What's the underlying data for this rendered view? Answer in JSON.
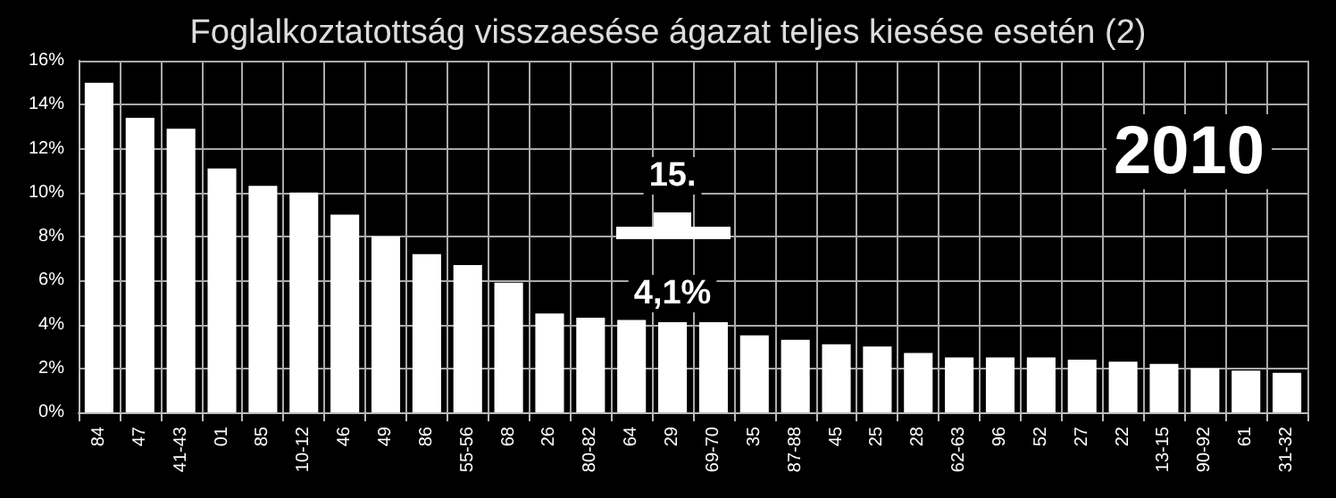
{
  "chart_data": {
    "type": "bar",
    "title": "Foglalkoztatottság visszaesése ágazat teljes kiesése esetén (2)",
    "categories": [
      "84",
      "47",
      "41-43",
      "01",
      "85",
      "10-12",
      "46",
      "49",
      "86",
      "55-56",
      "68",
      "26",
      "80-82",
      "64",
      "29",
      "69-70",
      "35",
      "87-88",
      "45",
      "25",
      "28",
      "62-63",
      "96",
      "52",
      "27",
      "22",
      "13-15",
      "90-92",
      "61",
      "31-32"
    ],
    "values": [
      15.0,
      13.4,
      12.9,
      11.1,
      10.3,
      10.0,
      9.0,
      8.0,
      7.2,
      6.7,
      5.9,
      4.5,
      4.3,
      4.2,
      4.1,
      4.1,
      3.5,
      3.3,
      3.1,
      3.0,
      2.7,
      2.5,
      2.5,
      2.5,
      2.4,
      2.3,
      2.2,
      2.0,
      1.9,
      1.8
    ],
    "color": "#ffffff",
    "ylim": [
      0,
      16
    ],
    "yticks": [
      {
        "value": 0,
        "label": "0%"
      },
      {
        "value": 2,
        "label": "2%"
      },
      {
        "value": 4,
        "label": "4%"
      },
      {
        "value": 6,
        "label": "6%"
      },
      {
        "value": 8,
        "label": "8%"
      },
      {
        "value": 10,
        "label": "10%"
      },
      {
        "value": 12,
        "label": "12%"
      },
      {
        "value": 14,
        "label": "14%"
      },
      {
        "value": 16,
        "label": "16%"
      }
    ],
    "grid": true,
    "annotations": [
      "15.",
      {
        "text": "4,1%",
        "x": "29",
        "y": 4.1
      },
      "2010"
    ]
  }
}
